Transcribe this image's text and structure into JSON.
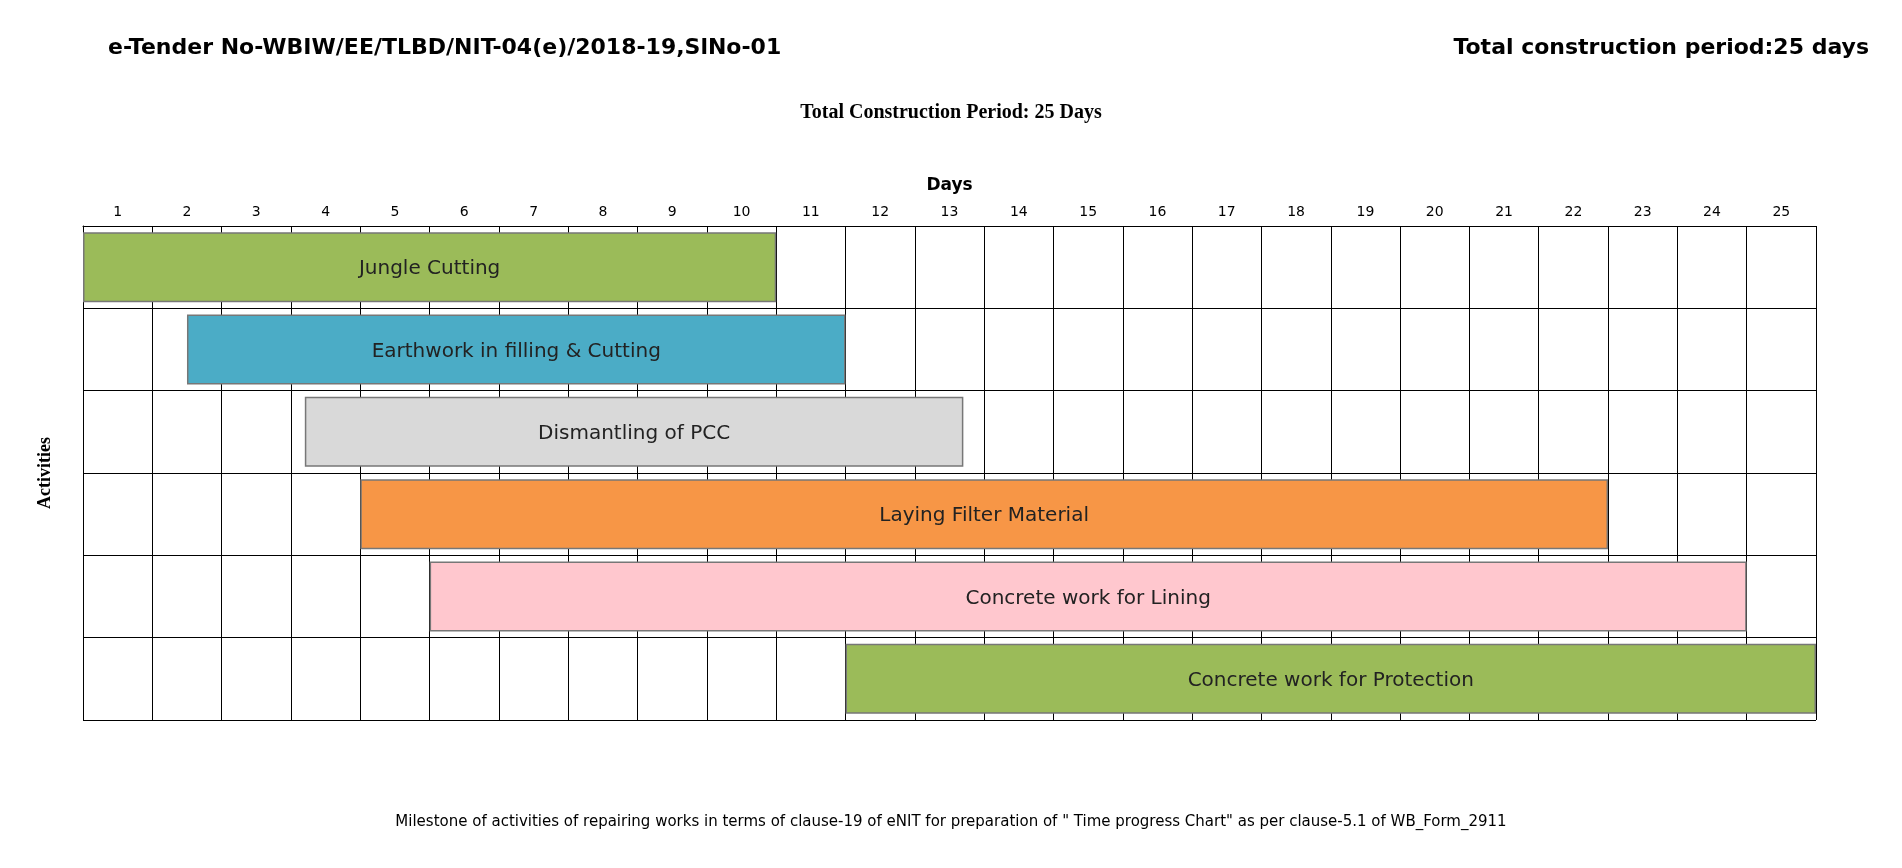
{
  "chart_data": {
    "type": "bar",
    "orientation": "horizontal",
    "title": "e-Tender No-WBIW/EE/TLBD/NIT-04(e)/2018-19,SlNo-01",
    "subtitle": "Total Construction Period: 25 Days",
    "xlabel": "Days",
    "ylabel": "Activities",
    "annotations": [
      "Total construction period:25 days",
      "Milestone of activities of repairing works in terms of clause-19 of eNIT for preparation of \" Time progress Chart\" as per clause-5.1 of WB_Form_2911"
    ],
    "categories": [
      "Jungle Cutting",
      "Earthwork in filling & Cutting",
      "Dismantling of PCC",
      "Laying Filter Material",
      "Concrete work for Lining",
      "Concrete work for Protection"
    ],
    "base": [
      0,
      1.5,
      3.2,
      4,
      5,
      11
    ],
    "values": [
      10,
      9.5,
      9.5,
      18,
      19,
      14
    ],
    "colors": [
      "#9bbb59",
      "#4bacc6",
      "#d9d9d9",
      "#f79646",
      "#ffc7ce",
      "#9bbb59"
    ],
    "xlim": [
      0,
      25
    ],
    "xticks": [
      {
        "value": 0.5,
        "label": "1"
      },
      {
        "value": 1.5,
        "label": "2"
      },
      {
        "value": 2.5,
        "label": "3"
      },
      {
        "value": 3.5,
        "label": "4"
      },
      {
        "value": 4.5,
        "label": "5"
      },
      {
        "value": 5.5,
        "label": "6"
      },
      {
        "value": 6.5,
        "label": "7"
      },
      {
        "value": 7.5,
        "label": "8"
      },
      {
        "value": 8.5,
        "label": "9"
      },
      {
        "value": 9.5,
        "label": "10"
      },
      {
        "value": 10.5,
        "label": "11"
      },
      {
        "value": 11.5,
        "label": "12"
      },
      {
        "value": 12.5,
        "label": "13"
      },
      {
        "value": 13.5,
        "label": "14"
      },
      {
        "value": 14.5,
        "label": "15"
      },
      {
        "value": 15.5,
        "label": "16"
      },
      {
        "value": 16.5,
        "label": "17"
      },
      {
        "value": 17.5,
        "label": "18"
      },
      {
        "value": 18.5,
        "label": "19"
      },
      {
        "value": 19.5,
        "label": "20"
      },
      {
        "value": 20.5,
        "label": "21"
      },
      {
        "value": 21.5,
        "label": "22"
      },
      {
        "value": 22.5,
        "label": "23"
      },
      {
        "value": 23.5,
        "label": "24"
      },
      {
        "value": 24.5,
        "label": "25"
      }
    ],
    "grid": true
  }
}
